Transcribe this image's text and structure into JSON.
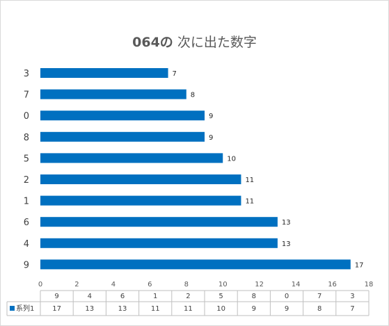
{
  "chart_data": {
    "type": "bar",
    "orientation": "horizontal",
    "title_number": "064の",
    "title_text": "次に出た数字",
    "categories": [
      "3",
      "7",
      "0",
      "8",
      "5",
      "2",
      "1",
      "6",
      "4",
      "9"
    ],
    "series": [
      {
        "name": "系列1",
        "values": [
          7,
          8,
          9,
          9,
          10,
          11,
          11,
          13,
          13,
          17
        ],
        "color": "#0070c0"
      }
    ],
    "xlim": [
      0,
      18
    ],
    "x_ticks": [
      "0",
      "2",
      "4",
      "6",
      "8",
      "10",
      "12",
      "14",
      "16",
      "18"
    ],
    "data_table": {
      "headers": [
        "9",
        "4",
        "6",
        "1",
        "2",
        "5",
        "8",
        "0",
        "7",
        "3"
      ],
      "row_label": "系列1",
      "values": [
        "17",
        "13",
        "13",
        "11",
        "11",
        "10",
        "9",
        "9",
        "8",
        "7"
      ]
    },
    "grid": false
  }
}
